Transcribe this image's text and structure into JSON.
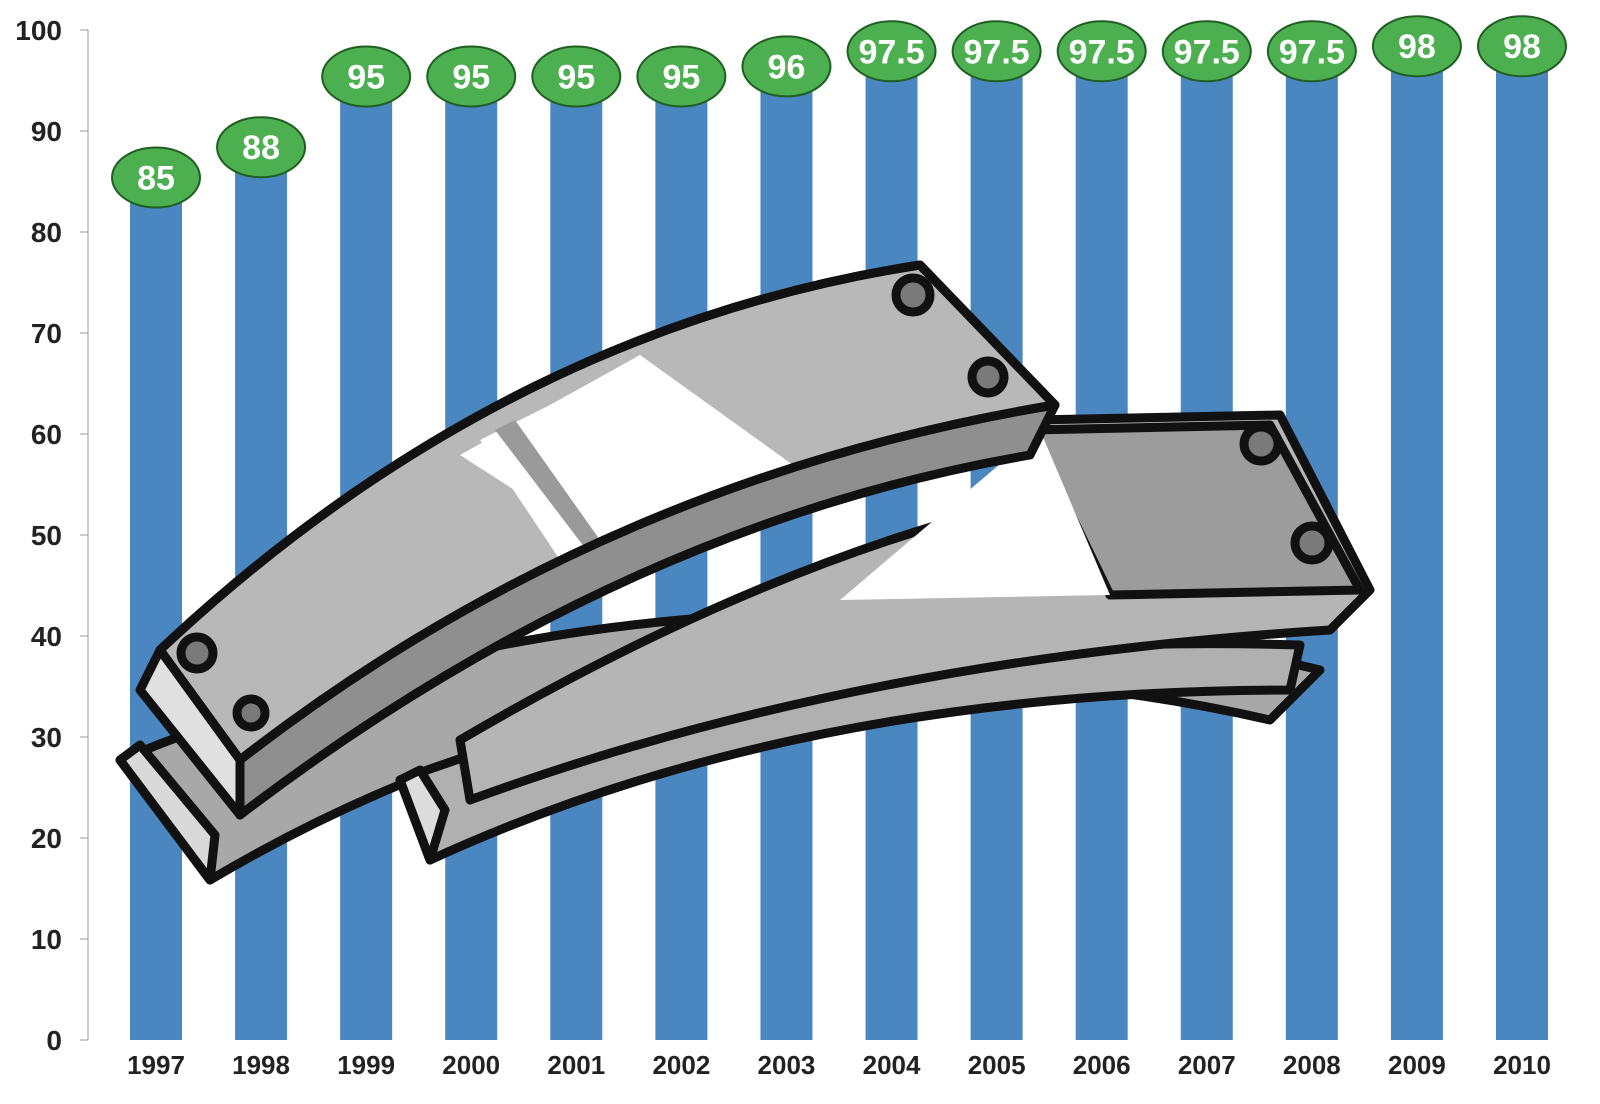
{
  "chart_data": {
    "type": "bar",
    "title": "",
    "xlabel": "",
    "ylabel": "",
    "categories": [
      "1997",
      "1998",
      "1999",
      "2000",
      "2001",
      "2002",
      "2003",
      "2004",
      "2005",
      "2006",
      "2007",
      "2008",
      "2009",
      "2010"
    ],
    "values": [
      85,
      88,
      95,
      95,
      95,
      95,
      96,
      97.5,
      97.5,
      97.5,
      97.5,
      97.5,
      98,
      98
    ],
    "data_labels": [
      "85",
      "88",
      "95",
      "95",
      "95",
      "95",
      "96",
      "97.5",
      "97.5",
      "97.5",
      "97.5",
      "97.5",
      "98",
      "98"
    ],
    "ylim": [
      0,
      100
    ],
    "yticks": [
      0,
      10,
      20,
      30,
      40,
      50,
      60,
      70,
      80,
      90,
      100
    ],
    "ytick_labels": [
      "0",
      "10",
      "20",
      "30",
      "40",
      "50",
      "60",
      "70",
      "80",
      "90",
      "100"
    ],
    "grid": false,
    "legend": "none",
    "bar_color": "#4a86c0",
    "label_badge_color": "#4caf50",
    "label_text_color": "#ffffff",
    "illustration": "stapler-illustration"
  }
}
